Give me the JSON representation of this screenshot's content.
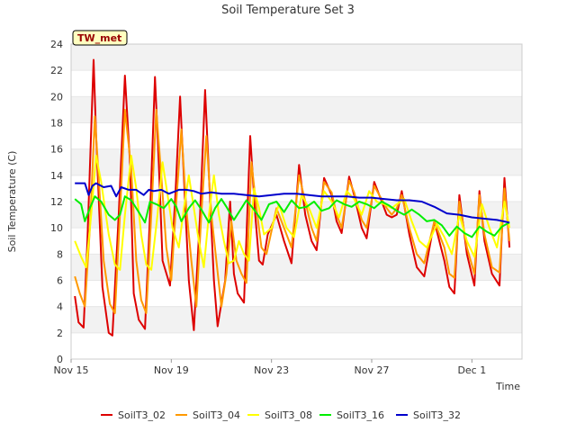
{
  "chart_data": {
    "type": "line",
    "title": "Soil Temperature Set 3",
    "xlabel": "Time",
    "ylabel": "Soil Temperature (C)",
    "station_badge": "TW_met",
    "ylim": [
      0,
      24
    ],
    "yticks": [
      "0",
      "2",
      "4",
      "6",
      "8",
      "10",
      "12",
      "14",
      "16",
      "18",
      "20",
      "22",
      "24"
    ],
    "xlim": [
      0,
      18.0
    ],
    "xticks": [
      {
        "x": 0,
        "label": "Nov 15"
      },
      {
        "x": 4,
        "label": "Nov 19"
      },
      {
        "x": 8,
        "label": "Nov 23"
      },
      {
        "x": 12,
        "label": "Nov 27"
      },
      {
        "x": 16,
        "label": "Dec 1"
      }
    ],
    "grid": "horizontal bands",
    "legend_position": "bottom",
    "series": [
      {
        "name": "SoilT3_02",
        "color": "#dd0000",
        "x": [
          0.15,
          0.3,
          0.5,
          0.65,
          0.9,
          1.0,
          1.25,
          1.5,
          1.65,
          1.9,
          2.15,
          2.35,
          2.5,
          2.7,
          2.95,
          3.15,
          3.35,
          3.5,
          3.65,
          3.95,
          4.15,
          4.35,
          4.55,
          4.7,
          4.9,
          5.15,
          5.35,
          5.55,
          5.7,
          5.85,
          6.15,
          6.35,
          6.5,
          6.65,
          6.9,
          7.15,
          7.35,
          7.5,
          7.65,
          7.85,
          8.2,
          8.5,
          8.8,
          9.1,
          9.35,
          9.6,
          9.8,
          10.1,
          10.4,
          10.6,
          10.8,
          11.1,
          11.3,
          11.6,
          11.8,
          12.1,
          12.3,
          12.6,
          12.8,
          13.0,
          13.2,
          13.5,
          13.8,
          14.1,
          14.5,
          14.9,
          15.1,
          15.3,
          15.5,
          15.8,
          16.1,
          16.3,
          16.5,
          16.8,
          17.1,
          17.3,
          17.5
        ],
        "y": [
          4.8,
          2.8,
          2.4,
          9.0,
          22.8,
          17.0,
          5.5,
          2.0,
          1.8,
          11.0,
          21.6,
          15.0,
          5.0,
          3.0,
          2.3,
          11.0,
          21.5,
          15.0,
          7.5,
          5.6,
          12.0,
          20.0,
          12.0,
          6.0,
          2.2,
          11.0,
          20.5,
          12.0,
          6.0,
          2.5,
          6.0,
          12.0,
          6.5,
          5.0,
          4.3,
          17.0,
          11.0,
          7.5,
          7.2,
          9.5,
          11.0,
          9.0,
          7.3,
          14.8,
          11.0,
          9.0,
          8.3,
          13.8,
          12.5,
          10.5,
          9.6,
          13.9,
          12.5,
          10.0,
          9.2,
          13.5,
          12.5,
          11.0,
          10.8,
          11.0,
          12.8,
          9.5,
          7.0,
          6.3,
          10.5,
          7.5,
          5.5,
          5.0,
          12.5,
          8.0,
          5.6,
          12.8,
          9.0,
          6.5,
          5.6,
          13.8,
          8.5
        ]
      },
      {
        "name": "SoilT3_04",
        "color": "#ff9900",
        "x": [
          0.15,
          0.35,
          0.55,
          0.75,
          0.95,
          1.05,
          1.3,
          1.55,
          1.75,
          1.95,
          2.15,
          2.4,
          2.6,
          2.8,
          3.0,
          3.2,
          3.4,
          3.6,
          3.8,
          4.0,
          4.2,
          4.4,
          4.6,
          4.8,
          5.0,
          5.2,
          5.4,
          5.6,
          5.8,
          6.0,
          6.2,
          6.4,
          6.6,
          6.8,
          7.0,
          7.2,
          7.4,
          7.6,
          7.8,
          8.2,
          8.5,
          8.8,
          9.1,
          9.35,
          9.6,
          9.8,
          10.1,
          10.4,
          10.6,
          10.8,
          11.1,
          11.3,
          11.6,
          11.8,
          12.1,
          12.3,
          12.6,
          12.8,
          13.0,
          13.2,
          13.5,
          13.8,
          14.1,
          14.5,
          14.9,
          15.1,
          15.3,
          15.5,
          15.8,
          16.1,
          16.3,
          16.5,
          16.8,
          17.1,
          17.3,
          17.5
        ],
        "y": [
          6.3,
          5.0,
          4.0,
          10.0,
          18.5,
          15.5,
          7.5,
          4.2,
          3.5,
          11.0,
          19.0,
          14.5,
          7.5,
          4.5,
          3.5,
          11.0,
          19.0,
          14.0,
          8.5,
          6.0,
          12.0,
          17.5,
          11.5,
          7.5,
          4.0,
          11.0,
          17.0,
          11.0,
          7.5,
          4.0,
          6.5,
          10.5,
          7.5,
          6.5,
          5.8,
          15.0,
          11.5,
          8.5,
          8.0,
          11.5,
          10.0,
          8.5,
          14.0,
          12.0,
          10.0,
          9.0,
          13.5,
          12.7,
          11.0,
          10.0,
          13.6,
          12.7,
          10.6,
          10.0,
          13.2,
          12.5,
          11.5,
          11.0,
          11.5,
          12.5,
          10.0,
          8.0,
          7.3,
          10.5,
          8.5,
          6.5,
          6.2,
          12.0,
          8.5,
          6.5,
          12.5,
          9.5,
          7.0,
          6.6,
          13.0,
          9.0
        ]
      },
      {
        "name": "SoilT3_08",
        "color": "#ffff00",
        "x": [
          0.15,
          0.4,
          0.6,
          0.8,
          1.0,
          1.2,
          1.5,
          1.75,
          1.95,
          2.15,
          2.4,
          2.6,
          2.8,
          3.0,
          3.2,
          3.45,
          3.65,
          3.85,
          4.05,
          4.3,
          4.5,
          4.7,
          4.9,
          5.1,
          5.3,
          5.5,
          5.7,
          5.9,
          6.1,
          6.3,
          6.5,
          6.7,
          6.9,
          7.1,
          7.3,
          7.5,
          7.7,
          8.0,
          8.3,
          8.6,
          8.9,
          9.2,
          9.5,
          9.8,
          10.1,
          10.4,
          10.7,
          11.0,
          11.3,
          11.6,
          11.9,
          12.2,
          12.5,
          12.8,
          13.0,
          13.3,
          13.6,
          13.9,
          14.2,
          14.6,
          14.9,
          15.2,
          15.5,
          15.8,
          16.1,
          16.4,
          16.7,
          17.0,
          17.3,
          17.5
        ],
        "y": [
          9.0,
          7.8,
          7.0,
          11.0,
          15.5,
          13.5,
          9.5,
          7.2,
          6.8,
          11.0,
          15.5,
          13.0,
          9.5,
          7.2,
          6.8,
          11.0,
          15.0,
          12.5,
          10.0,
          8.5,
          11.5,
          14.0,
          11.5,
          9.0,
          7.0,
          11.0,
          14.0,
          11.0,
          9.0,
          7.3,
          7.5,
          9.0,
          8.0,
          7.5,
          13.0,
          11.5,
          9.5,
          10.0,
          11.8,
          10.0,
          9.3,
          12.5,
          11.5,
          10.0,
          12.8,
          12.0,
          10.8,
          12.8,
          12.2,
          11.0,
          12.8,
          12.0,
          11.8,
          11.5,
          11.8,
          12.2,
          10.5,
          9.0,
          8.5,
          10.3,
          9.3,
          8.0,
          11.0,
          9.0,
          7.8,
          11.8,
          10.0,
          8.5,
          12.0,
          10.0
        ]
      },
      {
        "name": "SoilT3_16",
        "color": "#00ee00",
        "x": [
          0.15,
          0.4,
          0.55,
          0.75,
          0.95,
          1.2,
          1.5,
          1.75,
          1.95,
          2.15,
          2.4,
          2.7,
          2.95,
          3.15,
          3.4,
          3.7,
          4.0,
          4.2,
          4.4,
          4.7,
          4.95,
          5.2,
          5.5,
          5.75,
          6.0,
          6.2,
          6.5,
          6.8,
          7.0,
          7.3,
          7.6,
          7.9,
          8.2,
          8.5,
          8.8,
          9.1,
          9.4,
          9.7,
          10.0,
          10.3,
          10.6,
          10.9,
          11.2,
          11.5,
          11.8,
          12.1,
          12.4,
          12.7,
          13.0,
          13.3,
          13.6,
          13.9,
          14.2,
          14.5,
          14.8,
          15.1,
          15.4,
          15.7,
          16.0,
          16.3,
          16.6,
          16.9,
          17.2,
          17.5
        ],
        "y": [
          12.2,
          11.8,
          10.5,
          11.5,
          12.4,
          12.0,
          11.0,
          10.6,
          11.0,
          12.4,
          12.1,
          11.2,
          10.4,
          12.0,
          11.8,
          11.5,
          12.2,
          11.6,
          10.5,
          11.5,
          12.1,
          11.4,
          10.4,
          11.5,
          12.2,
          11.6,
          10.6,
          11.5,
          12.1,
          11.4,
          10.6,
          11.8,
          12.0,
          11.2,
          12.1,
          11.5,
          11.6,
          12.0,
          11.3,
          11.5,
          12.1,
          11.8,
          11.6,
          12.0,
          11.8,
          11.5,
          12.0,
          11.7,
          11.3,
          11.0,
          11.4,
          11.0,
          10.5,
          10.6,
          10.2,
          9.4,
          10.1,
          9.6,
          9.3,
          10.1,
          9.7,
          9.4,
          10.1,
          10.4
        ]
      },
      {
        "name": "SoilT3_32",
        "color": "#0000cc",
        "x": [
          0.15,
          0.55,
          0.7,
          0.85,
          1.0,
          1.3,
          1.6,
          1.8,
          2.0,
          2.3,
          2.6,
          2.9,
          3.1,
          3.3,
          3.6,
          3.9,
          4.3,
          4.6,
          4.9,
          5.2,
          5.6,
          6.0,
          6.5,
          7.0,
          7.5,
          8.0,
          8.5,
          9.0,
          9.5,
          10.0,
          10.5,
          11.0,
          11.5,
          12.0,
          12.5,
          13.0,
          13.5,
          14.0,
          14.5,
          15.0,
          15.5,
          16.0,
          16.5,
          17.0,
          17.5
        ],
        "y": [
          13.4,
          13.4,
          12.5,
          13.2,
          13.4,
          13.1,
          13.2,
          12.4,
          13.1,
          12.9,
          12.9,
          12.5,
          12.9,
          12.8,
          12.9,
          12.6,
          12.9,
          12.9,
          12.8,
          12.6,
          12.7,
          12.6,
          12.6,
          12.5,
          12.4,
          12.5,
          12.6,
          12.6,
          12.5,
          12.4,
          12.4,
          12.4,
          12.3,
          12.3,
          12.2,
          12.1,
          12.1,
          12.0,
          11.6,
          11.1,
          11.0,
          10.8,
          10.7,
          10.6,
          10.4
        ]
      }
    ]
  }
}
